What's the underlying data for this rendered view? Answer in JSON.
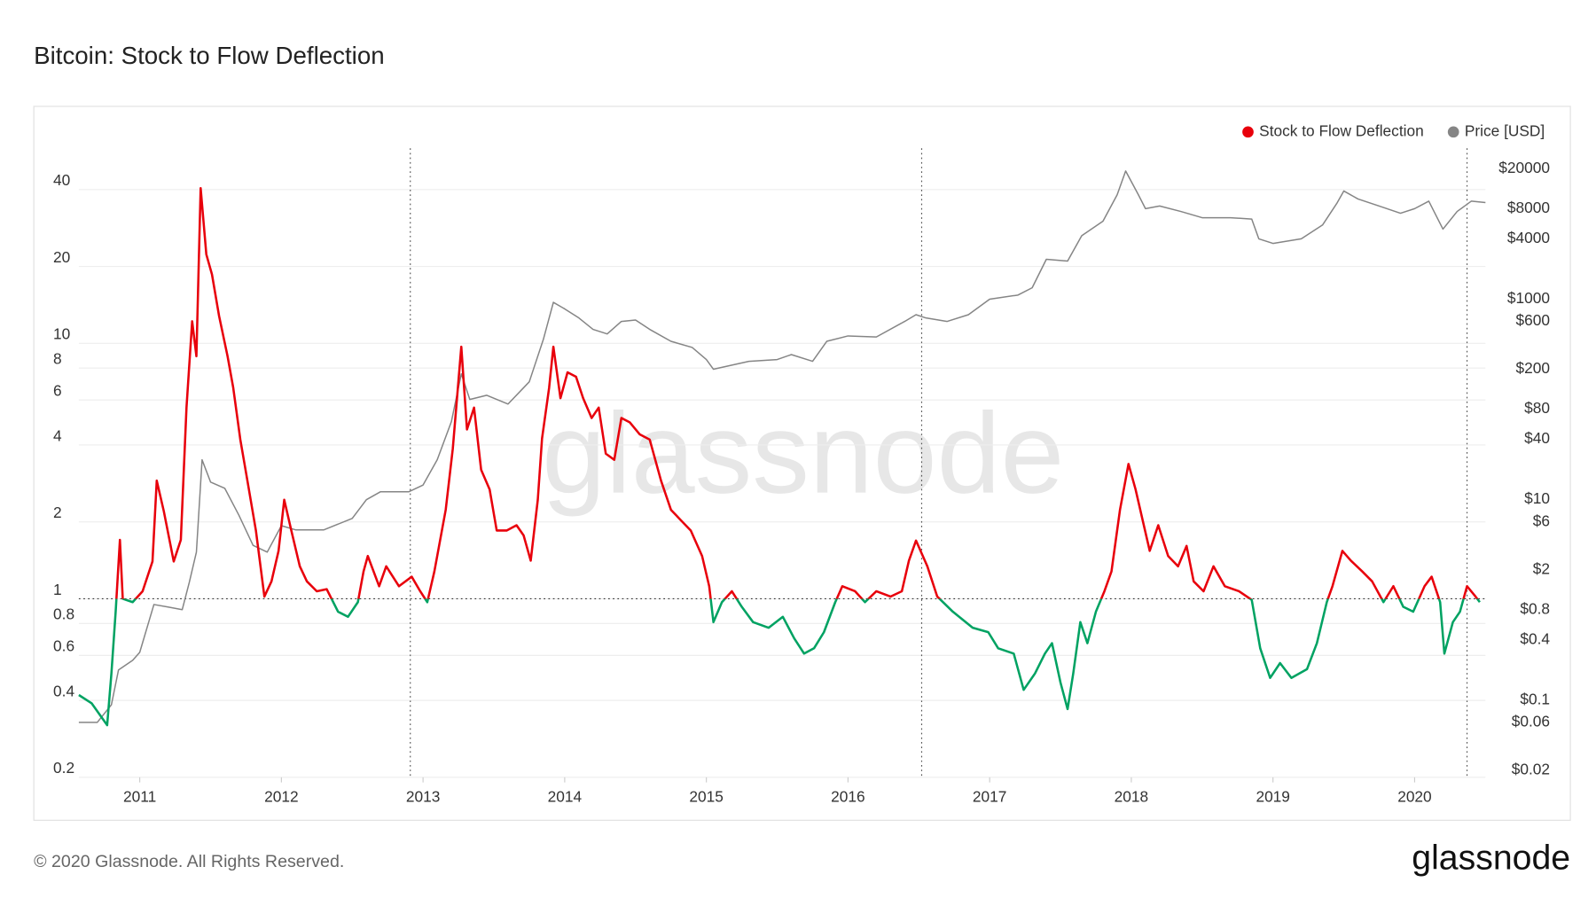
{
  "chart_data": {
    "type": "line",
    "title": "Bitcoin: Stock to Flow Deflection",
    "xlim": [
      2010.57,
      2020.5
    ],
    "xticks": [
      2011,
      2012,
      2013,
      2014,
      2015,
      2016,
      2017,
      2018,
      2019,
      2020
    ],
    "ylim": [
      0.2,
      58
    ],
    "yticks": [
      0.2,
      0.4,
      0.6,
      0.8,
      1,
      2,
      4,
      6,
      8,
      10,
      20,
      40
    ],
    "y2lim": [
      0.017,
      32000
    ],
    "y2ticks": [
      {
        "value": 0.02,
        "label": "$0.02"
      },
      {
        "value": 0.06,
        "label": "$0.06"
      },
      {
        "value": 0.1,
        "label": "$0.1"
      },
      {
        "value": 0.4,
        "label": "$0.4"
      },
      {
        "value": 0.8,
        "label": "$0.8"
      },
      {
        "value": 2,
        "label": "$2"
      },
      {
        "value": 6,
        "label": "$6"
      },
      {
        "value": 10,
        "label": "$10"
      },
      {
        "value": 40,
        "label": "$40"
      },
      {
        "value": 80,
        "label": "$80"
      },
      {
        "value": 200,
        "label": "$200"
      },
      {
        "value": 600,
        "label": "$600"
      },
      {
        "value": 1000,
        "label": "$1000"
      },
      {
        "value": 4000,
        "label": "$4000"
      },
      {
        "value": 8000,
        "label": "$8000"
      },
      {
        "value": 20000,
        "label": "$20000"
      }
    ],
    "log_scale": true,
    "grid": true,
    "legend": "top-right",
    "threshold": 1,
    "vlines": [
      2012.91,
      2016.52,
      2020.37
    ],
    "series": [
      {
        "name": "Stock to Flow Deflection",
        "color": "#e8000b",
        "color_below": "#00a262",
        "x": [
          2010.57,
          2010.66,
          2010.77,
          2010.8,
          2010.83,
          2010.86,
          2010.88,
          2010.95,
          2011.02,
          2011.09,
          2011.12,
          2011.17,
          2011.24,
          2011.29,
          2011.33,
          2011.37,
          2011.4,
          2011.43,
          2011.47,
          2011.51,
          2011.56,
          2011.62,
          2011.66,
          2011.71,
          2011.76,
          2011.82,
          2011.88,
          2011.93,
          2011.98,
          2012.02,
          2012.07,
          2012.13,
          2012.18,
          2012.25,
          2012.32,
          2012.4,
          2012.47,
          2012.54,
          2012.58,
          2012.61,
          2012.69,
          2012.74,
          2012.83,
          2012.92,
          2012.98,
          2013.03,
          2013.08,
          2013.16,
          2013.21,
          2013.27,
          2013.31,
          2013.36,
          2013.41,
          2013.47,
          2013.52,
          2013.59,
          2013.66,
          2013.71,
          2013.76,
          2013.81,
          2013.84,
          2013.89,
          2013.92,
          2013.97,
          2014.02,
          2014.08,
          2014.13,
          2014.19,
          2014.24,
          2014.29,
          2014.35,
          2014.4,
          2014.46,
          2014.53,
          2014.6,
          2014.68,
          2014.75,
          2014.82,
          2014.89,
          2014.97,
          2015.02,
          2015.05,
          2015.11,
          2015.18,
          2015.25,
          2015.33,
          2015.44,
          2015.54,
          2015.62,
          2015.69,
          2015.76,
          2015.83,
          2015.91,
          2015.96,
          2016.05,
          2016.12,
          2016.2,
          2016.3,
          2016.38,
          2016.43,
          2016.48,
          2016.56,
          2016.63,
          2016.74,
          2016.88,
          2016.99,
          2017.06,
          2017.17,
          2017.24,
          2017.32,
          2017.39,
          2017.44,
          2017.5,
          2017.55,
          2017.59,
          2017.64,
          2017.69,
          2017.75,
          2017.81,
          2017.86,
          2017.92,
          2017.98,
          2018.03,
          2018.08,
          2018.13,
          2018.19,
          2018.26,
          2018.33,
          2018.39,
          2018.44,
          2018.51,
          2018.58,
          2018.66,
          2018.76,
          2018.85,
          2018.91,
          2018.98,
          2019.05,
          2019.13,
          2019.24,
          2019.31,
          2019.38,
          2019.42,
          2019.49,
          2019.55,
          2019.63,
          2019.7,
          2019.78,
          2019.85,
          2019.92,
          2019.99,
          2020.07,
          2020.12,
          2020.18,
          2020.21,
          2020.27,
          2020.32,
          2020.37,
          2020.43,
          2020.46
        ],
        "values": [
          0.42,
          0.39,
          0.32,
          0.51,
          0.89,
          1.7,
          1.0,
          0.97,
          1.07,
          1.4,
          2.9,
          2.2,
          1.4,
          1.7,
          5.6,
          12.2,
          8.9,
          40.5,
          22.3,
          18.6,
          12.8,
          8.9,
          6.7,
          4.2,
          2.9,
          1.85,
          1.02,
          1.17,
          1.54,
          2.44,
          1.85,
          1.34,
          1.17,
          1.07,
          1.09,
          0.89,
          0.85,
          0.97,
          1.28,
          1.47,
          1.12,
          1.34,
          1.12,
          1.22,
          1.07,
          0.97,
          1.28,
          2.23,
          3.87,
          9.7,
          4.6,
          5.6,
          3.2,
          2.68,
          1.85,
          1.85,
          1.94,
          1.77,
          1.41,
          2.44,
          4.24,
          6.7,
          9.7,
          6.1,
          7.7,
          7.4,
          6.1,
          5.1,
          5.6,
          3.7,
          3.5,
          5.1,
          4.9,
          4.4,
          4.2,
          2.9,
          2.23,
          2.03,
          1.85,
          1.47,
          1.12,
          0.81,
          0.97,
          1.07,
          0.93,
          0.81,
          0.77,
          0.85,
          0.7,
          0.61,
          0.64,
          0.74,
          0.97,
          1.12,
          1.07,
          0.97,
          1.07,
          1.02,
          1.07,
          1.41,
          1.69,
          1.34,
          1.02,
          0.89,
          0.77,
          0.74,
          0.64,
          0.61,
          0.44,
          0.51,
          0.61,
          0.67,
          0.47,
          0.37,
          0.51,
          0.81,
          0.67,
          0.89,
          1.07,
          1.28,
          2.23,
          3.37,
          2.68,
          2.03,
          1.54,
          1.94,
          1.47,
          1.34,
          1.61,
          1.17,
          1.07,
          1.34,
          1.12,
          1.07,
          0.99,
          0.64,
          0.49,
          0.56,
          0.49,
          0.53,
          0.67,
          0.97,
          1.12,
          1.54,
          1.41,
          1.28,
          1.17,
          0.97,
          1.12,
          0.93,
          0.89,
          1.12,
          1.22,
          0.97,
          0.61,
          0.81,
          0.89,
          1.12,
          1.02,
          0.97
        ]
      },
      {
        "name": "Price [USD]",
        "color": "#858585",
        "axis": "y2",
        "x": [
          2010.57,
          2010.7,
          2010.8,
          2010.85,
          2010.95,
          2011.0,
          2011.1,
          2011.2,
          2011.3,
          2011.35,
          2011.4,
          2011.44,
          2011.5,
          2011.6,
          2011.7,
          2011.8,
          2011.9,
          2012.0,
          2012.1,
          2012.3,
          2012.5,
          2012.6,
          2012.7,
          2012.9,
          2013.0,
          2013.1,
          2013.2,
          2013.27,
          2013.33,
          2013.45,
          2013.6,
          2013.75,
          2013.85,
          2013.92,
          2014.0,
          2014.1,
          2014.2,
          2014.3,
          2014.4,
          2014.5,
          2014.6,
          2014.75,
          2014.9,
          2015.0,
          2015.05,
          2015.3,
          2015.5,
          2015.6,
          2015.75,
          2015.85,
          2016.0,
          2016.2,
          2016.4,
          2016.48,
          2016.55,
          2016.7,
          2016.85,
          2017.0,
          2017.2,
          2017.3,
          2017.4,
          2017.55,
          2017.65,
          2017.8,
          2017.9,
          2017.96,
          2018.05,
          2018.1,
          2018.2,
          2018.35,
          2018.5,
          2018.7,
          2018.85,
          2018.9,
          2019.0,
          2019.2,
          2019.35,
          2019.45,
          2019.5,
          2019.6,
          2019.75,
          2019.9,
          2020.0,
          2020.1,
          2020.2,
          2020.3,
          2020.4,
          2020.5
        ],
        "values": [
          0.06,
          0.06,
          0.09,
          0.2,
          0.25,
          0.3,
          0.9,
          0.85,
          0.8,
          1.5,
          3,
          25,
          15,
          13,
          7,
          3.5,
          3,
          5.5,
          5,
          5,
          6.5,
          10,
          12,
          12,
          14,
          25,
          60,
          180,
          100,
          110,
          90,
          150,
          400,
          930,
          800,
          650,
          500,
          450,
          600,
          620,
          500,
          380,
          330,
          250,
          200,
          240,
          250,
          280,
          240,
          380,
          430,
          420,
          600,
          700,
          650,
          600,
          700,
          1000,
          1100,
          1300,
          2500,
          2400,
          4300,
          6000,
          11000,
          19000,
          11000,
          8000,
          8500,
          7500,
          6500,
          6500,
          6300,
          4000,
          3600,
          4000,
          5500,
          9000,
          12000,
          10000,
          8500,
          7200,
          8000,
          9500,
          5000,
          7500,
          9500,
          9200
        ]
      }
    ]
  },
  "watermark": "glassnode",
  "footer": "© 2020 Glassnode. All Rights Reserved.",
  "brand": "glassnode"
}
